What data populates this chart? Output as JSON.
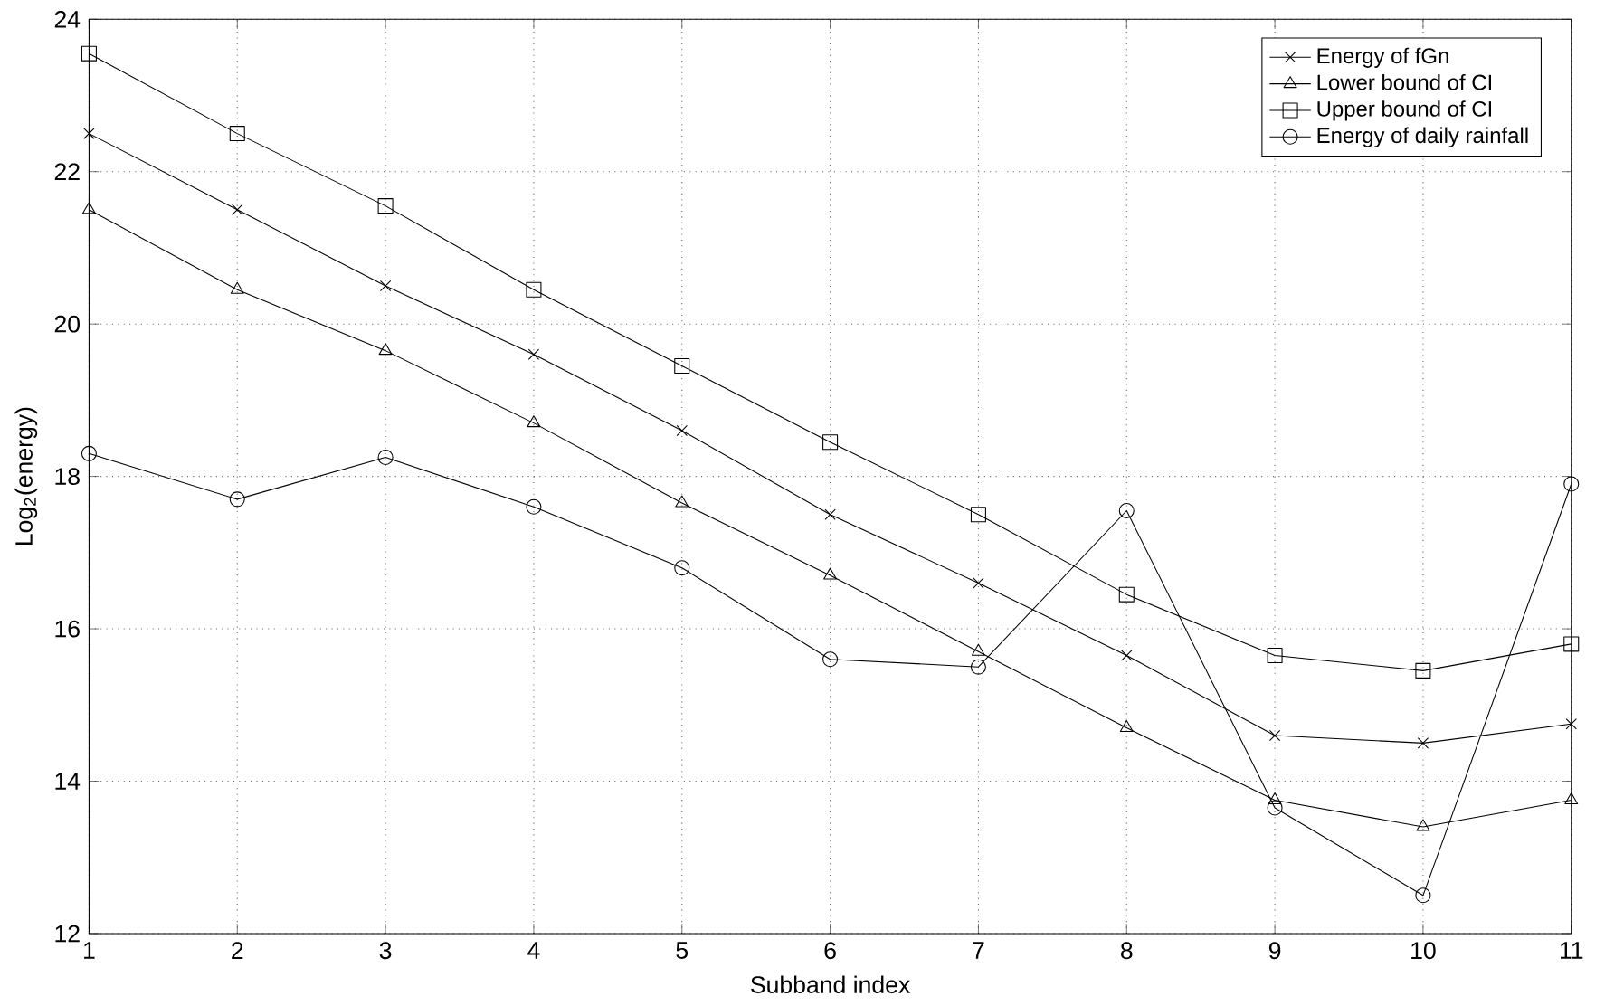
{
  "chart_data": {
    "type": "line",
    "xlabel": "Subband index",
    "ylabel": "Log$_{2}$(energy)",
    "x": [
      1,
      2,
      3,
      4,
      5,
      6,
      7,
      8,
      9,
      10,
      11
    ],
    "xlim": [
      1,
      11
    ],
    "xticks": [
      1,
      2,
      3,
      4,
      5,
      6,
      7,
      8,
      9,
      10,
      11
    ],
    "ylim": [
      12,
      24
    ],
    "yticks": [
      12,
      14,
      16,
      18,
      20,
      22,
      24
    ],
    "grid": true,
    "legend": "top right",
    "line_style": "solid",
    "series": [
      {
        "name": "Energy of fGn",
        "color": "#000000",
        "marker": "cross",
        "values": [
          22.5,
          21.5,
          20.5,
          19.6,
          18.6,
          17.5,
          16.6,
          15.65,
          14.6,
          14.5,
          14.75
        ]
      },
      {
        "name": "Lower bound of CI",
        "color": "#000000",
        "marker": "triangle",
        "values": [
          21.5,
          20.45,
          19.65,
          18.7,
          17.65,
          16.7,
          15.7,
          14.7,
          13.75,
          13.4,
          13.75
        ]
      },
      {
        "name": "Upper bound of CI",
        "color": "#000000",
        "marker": "square",
        "values": [
          23.55,
          22.5,
          21.55,
          20.45,
          19.45,
          18.45,
          17.5,
          16.45,
          15.65,
          15.45,
          15.8
        ]
      },
      {
        "name": "Energy of daily rainfall",
        "color": "#000000",
        "marker": "circle",
        "values": [
          18.3,
          17.7,
          18.25,
          17.6,
          16.8,
          15.6,
          15.5,
          17.55,
          13.65,
          12.5,
          17.9
        ]
      }
    ]
  }
}
